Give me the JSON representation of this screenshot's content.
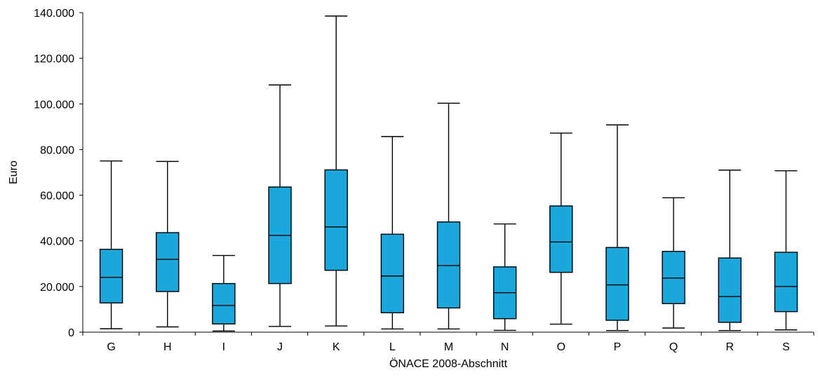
{
  "chart_data": {
    "type": "boxplot",
    "xlabel": "ÖNACE 2008-Abschnitt",
    "ylabel": "Euro",
    "ylim": [
      0,
      140000
    ],
    "yticks": [
      0,
      20000,
      40000,
      60000,
      80000,
      100000,
      120000,
      140000
    ],
    "ytick_labels": [
      "0",
      "20.000",
      "40.000",
      "60.000",
      "80.000",
      "100.000",
      "120.000",
      "140.000"
    ],
    "grid": false,
    "box_color": "#1ba6dc",
    "categories": [
      "G",
      "H",
      "I",
      "J",
      "K",
      "L",
      "M",
      "N",
      "O",
      "P",
      "Q",
      "R",
      "S"
    ],
    "boxes": [
      {
        "min": 1500,
        "q1": 12800,
        "median": 24000,
        "q3": 36300,
        "max": 75000
      },
      {
        "min": 2300,
        "q1": 17800,
        "median": 31900,
        "q3": 43600,
        "max": 74800
      },
      {
        "min": 500,
        "q1": 3600,
        "median": 11700,
        "q3": 21300,
        "max": 33600
      },
      {
        "min": 2500,
        "q1": 21300,
        "median": 42400,
        "q3": 63600,
        "max": 108300
      },
      {
        "min": 2700,
        "q1": 27100,
        "median": 46100,
        "q3": 71100,
        "max": 138500
      },
      {
        "min": 1400,
        "q1": 8500,
        "median": 24600,
        "q3": 42900,
        "max": 85700
      },
      {
        "min": 1400,
        "q1": 10600,
        "median": 29200,
        "q3": 48300,
        "max": 100300
      },
      {
        "min": 800,
        "q1": 5900,
        "median": 17300,
        "q3": 28600,
        "max": 47400
      },
      {
        "min": 3500,
        "q1": 26200,
        "median": 39500,
        "q3": 55300,
        "max": 87200
      },
      {
        "min": 700,
        "q1": 5200,
        "median": 20700,
        "q3": 37100,
        "max": 90800
      },
      {
        "min": 1800,
        "q1": 12500,
        "median": 23700,
        "q3": 35400,
        "max": 58900
      },
      {
        "min": 700,
        "q1": 4300,
        "median": 15600,
        "q3": 32500,
        "max": 71000
      },
      {
        "min": 1000,
        "q1": 9000,
        "median": 20000,
        "q3": 35000,
        "max": 70700
      }
    ]
  }
}
